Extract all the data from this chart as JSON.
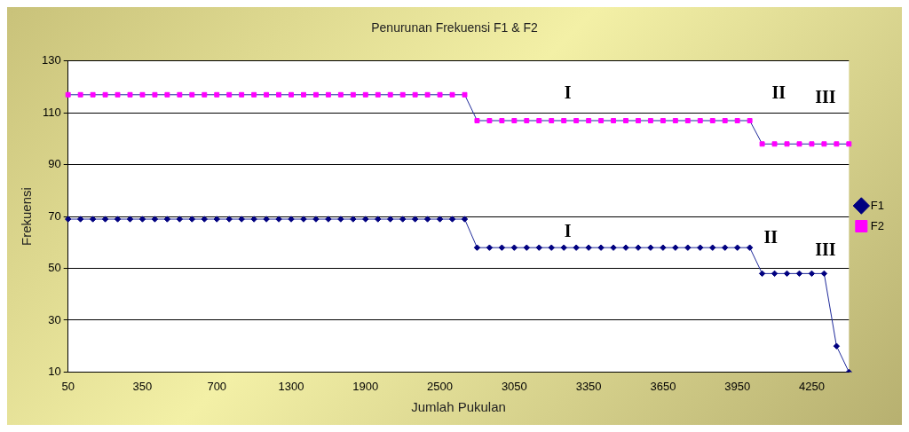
{
  "chart_data": {
    "type": "line",
    "title": "Penurunan Frekuensi F1 & F2",
    "xlabel": "Jumlah Pukulan",
    "ylabel": "Frekuensi",
    "categories": [
      "50",
      null,
      null,
      null,
      null,
      null,
      "350",
      null,
      null,
      null,
      null,
      null,
      "700",
      null,
      null,
      null,
      null,
      null,
      "1300",
      null,
      null,
      null,
      null,
      null,
      "1900",
      null,
      null,
      null,
      null,
      null,
      "2500",
      null,
      null,
      null,
      null,
      null,
      "3050",
      null,
      null,
      null,
      null,
      null,
      "3350",
      null,
      null,
      null,
      null,
      null,
      "3650",
      null,
      null,
      null,
      null,
      null,
      "3950",
      null,
      null,
      null,
      null,
      null,
      "4250",
      null,
      null,
      null
    ],
    "series": [
      {
        "name": "F1",
        "color": "#000080",
        "marker": "diamond",
        "values": [
          69,
          69,
          69,
          69,
          69,
          69,
          69,
          69,
          69,
          69,
          69,
          69,
          69,
          69,
          69,
          69,
          69,
          69,
          69,
          69,
          69,
          69,
          69,
          69,
          69,
          69,
          69,
          69,
          69,
          69,
          69,
          69,
          69,
          58,
          58,
          58,
          58,
          58,
          58,
          58,
          58,
          58,
          58,
          58,
          58,
          58,
          58,
          58,
          58,
          58,
          58,
          58,
          58,
          58,
          58,
          58,
          48,
          48,
          48,
          48,
          48,
          48,
          20,
          10
        ]
      },
      {
        "name": "F2",
        "color": "#ff00ff",
        "marker": "square",
        "values": [
          117,
          117,
          117,
          117,
          117,
          117,
          117,
          117,
          117,
          117,
          117,
          117,
          117,
          117,
          117,
          117,
          117,
          117,
          117,
          117,
          117,
          117,
          117,
          117,
          117,
          117,
          117,
          117,
          117,
          117,
          117,
          117,
          117,
          107,
          107,
          107,
          107,
          107,
          107,
          107,
          107,
          107,
          107,
          107,
          107,
          107,
          107,
          107,
          107,
          107,
          107,
          107,
          107,
          107,
          107,
          107,
          98,
          98,
          98,
          98,
          98,
          98,
          98,
          98
        ]
      }
    ],
    "ylim": [
      10,
      130
    ],
    "yticks": [
      10,
      30,
      50,
      70,
      90,
      110,
      130
    ],
    "grid": "y",
    "legend": "right",
    "line_style": "solid",
    "annotations": [
      "I",
      "II",
      "III",
      "I",
      "II",
      "III"
    ]
  }
}
